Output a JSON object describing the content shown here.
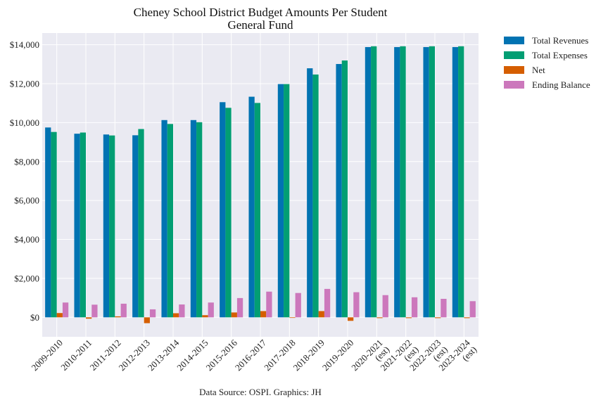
{
  "chart_data": {
    "type": "bar",
    "title": "Cheney School District Budget Amounts Per Student",
    "subtitle": "General Fund",
    "xlabel": "",
    "ylabel": "",
    "ylim": [
      -1000,
      14600
    ],
    "yticks": [
      0,
      2000,
      4000,
      6000,
      8000,
      10000,
      12000,
      14000
    ],
    "ytick_labels": [
      "$0",
      "$2,000",
      "$4,000",
      "$6,000",
      "$8,000",
      "$10,000",
      "$12,000",
      "$14,000"
    ],
    "grid": true,
    "legend_position": "outside-top-right",
    "categories": [
      "2009-2010",
      "2010-2011",
      "2011-2012",
      "2012-2013",
      "2013-2014",
      "2014-2015",
      "2015-2016",
      "2016-2017",
      "2017-2018",
      "2018-2019",
      "2019-2020",
      "2020-2021\n(est)",
      "2021-2022\n(est)",
      "2022-2023\n(est)",
      "2023-2024\n(est)"
    ],
    "series": [
      {
        "name": "Total Revenues",
        "color": "#0173b2",
        "values": [
          9750,
          9430,
          9390,
          9350,
          10130,
          10130,
          11050,
          11330,
          11980,
          12790,
          13010,
          13880,
          13880,
          13880,
          13880
        ]
      },
      {
        "name": "Total Expenses",
        "color": "#029e73",
        "values": [
          9520,
          9490,
          9340,
          9670,
          9930,
          10020,
          10760,
          11010,
          11980,
          12470,
          13190,
          13920,
          13920,
          13920,
          13920
        ]
      },
      {
        "name": "Net",
        "color": "#d55e00",
        "values": [
          220,
          -70,
          50,
          -300,
          210,
          110,
          250,
          320,
          -20,
          320,
          -180,
          -40,
          -40,
          -40,
          -40
        ]
      },
      {
        "name": "Ending Balance",
        "color": "#cc78bc",
        "values": [
          760,
          650,
          700,
          410,
          660,
          760,
          990,
          1320,
          1250,
          1460,
          1290,
          1140,
          1030,
          950,
          830
        ]
      }
    ]
  },
  "source_note": "Data Source: OSPI. Graphics: JH",
  "colors": {
    "plot_background": "#eaeaf2",
    "grid": "#ffffff"
  }
}
